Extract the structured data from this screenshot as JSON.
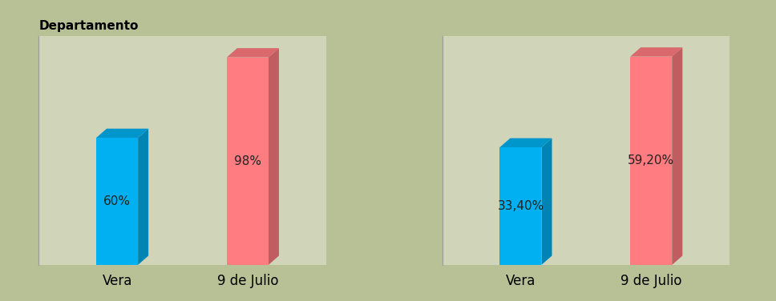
{
  "chart_data": [
    {
      "type": "bar",
      "title": "Departamento",
      "categories": [
        "Vera",
        "9 de Julio"
      ],
      "values": [
        60,
        98
      ],
      "value_labels": [
        "60%",
        "98%"
      ],
      "colors": [
        "#00B0F0",
        "#FF7C80"
      ],
      "ylim": [
        0,
        108
      ],
      "yticks": [],
      "data_labels": true,
      "tick_labels": "x",
      "grid": false
    },
    {
      "type": "bar",
      "categories": [
        "Vera",
        "9 de Julio"
      ],
      "values": [
        33.4,
        59.2
      ],
      "value_labels": [
        "33,40%",
        "59,20%"
      ],
      "colors": [
        "#00B0F0",
        "#FF7C80"
      ],
      "ylim": [
        0,
        65
      ],
      "yticks": [],
      "data_labels": true,
      "tick_labels": "x",
      "grid": false
    }
  ]
}
